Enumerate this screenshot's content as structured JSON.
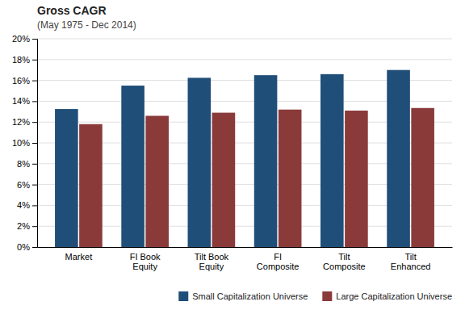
{
  "chart_data": {
    "type": "bar",
    "title": "Gross CAGR",
    "subtitle": "(May 1975 - Dec 2014)",
    "categories": [
      "Market",
      "FI Book\nEquity",
      "Tilt Book\nEquity",
      "FI\nComposite",
      "Tilt\nComposite",
      "Tilt\nEnhanced"
    ],
    "series": [
      {
        "name": "Small Capitalization Universe",
        "color": "#1F4E79",
        "values": [
          13.25,
          15.5,
          16.25,
          16.5,
          16.6,
          17.0
        ]
      },
      {
        "name": "Large Capitalization Universe",
        "color": "#8B3A3A",
        "values": [
          11.8,
          12.6,
          12.9,
          13.2,
          13.1,
          13.35
        ]
      }
    ],
    "ylim": [
      0,
      20
    ],
    "yticks": [
      {
        "value": 0,
        "label": "0%"
      },
      {
        "value": 2,
        "label": "2%"
      },
      {
        "value": 4,
        "label": "4%"
      },
      {
        "value": 6,
        "label": "6%"
      },
      {
        "value": 8,
        "label": "8%"
      },
      {
        "value": 10,
        "label": "10%"
      },
      {
        "value": 12,
        "label": "12%"
      },
      {
        "value": 14,
        "label": "14%"
      },
      {
        "value": 16,
        "label": "16%"
      },
      {
        "value": 18,
        "label": "18%"
      },
      {
        "value": 20,
        "label": "20%"
      }
    ],
    "grid": true,
    "legend": "lower right"
  }
}
